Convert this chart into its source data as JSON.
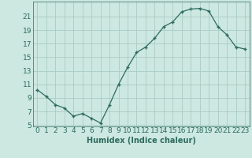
{
  "x": [
    0,
    1,
    2,
    3,
    4,
    5,
    6,
    7,
    8,
    9,
    10,
    11,
    12,
    13,
    14,
    15,
    16,
    17,
    18,
    19,
    20,
    21,
    22,
    23
  ],
  "y": [
    10.2,
    9.2,
    8.0,
    7.5,
    6.3,
    6.7,
    6.0,
    5.3,
    8.0,
    11.0,
    13.5,
    15.7,
    16.5,
    17.8,
    19.5,
    20.2,
    21.7,
    22.1,
    22.2,
    21.8,
    19.5,
    18.3,
    16.5,
    16.2
  ],
  "xlabel": "Humidex (Indice chaleur)",
  "ylim": [
    4.8,
    23.2
  ],
  "xlim": [
    -0.5,
    23.5
  ],
  "yticks": [
    5,
    7,
    9,
    11,
    13,
    15,
    17,
    19,
    21
  ],
  "xticks": [
    0,
    1,
    2,
    3,
    4,
    5,
    6,
    7,
    8,
    9,
    10,
    11,
    12,
    13,
    14,
    15,
    16,
    17,
    18,
    19,
    20,
    21,
    22,
    23
  ],
  "line_color": "#2e6b5e",
  "marker": "+",
  "bg_color": "#cce8e0",
  "grid_color": "#aaccc4",
  "text_color": "#2e6b5e",
  "xlabel_fontsize": 7,
  "tick_fontsize": 6.5
}
